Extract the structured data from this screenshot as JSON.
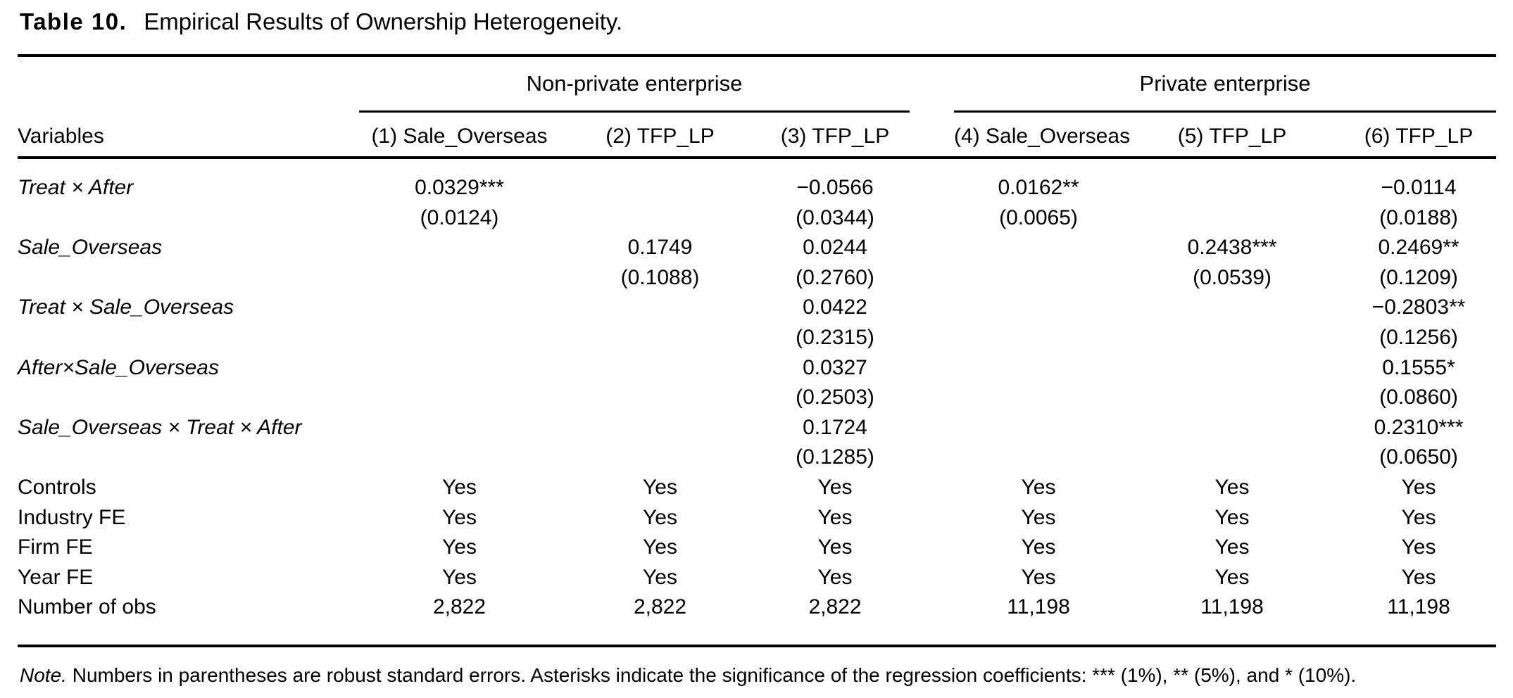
{
  "title": {
    "label": "Table 10.",
    "text": "Empirical Results of Ownership Heterogeneity."
  },
  "table": {
    "groups": [
      {
        "label": "Non-private enterprise"
      },
      {
        "label": "Private enterprise"
      }
    ],
    "columns": [
      "Variables",
      "(1) Sale_Overseas",
      "(2) TFP_LP",
      "(3) TFP_LP",
      "(4) Sale_Overseas",
      "(5) TFP_LP",
      "(6) TFP_LP"
    ],
    "coef_rows": [
      {
        "label": "Treat × After",
        "cells": [
          {
            "est": "0.0329***",
            "se": "(0.0124)"
          },
          null,
          {
            "est": "−0.0566",
            "se": "(0.0344)"
          },
          {
            "est": "0.0162**",
            "se": "(0.0065)"
          },
          null,
          {
            "est": "−0.0114",
            "se": "(0.0188)"
          }
        ]
      },
      {
        "label": "Sale_Overseas",
        "cells": [
          null,
          {
            "est": "0.1749",
            "se": "(0.1088)"
          },
          {
            "est": "0.0244",
            "se": "(0.2760)"
          },
          null,
          {
            "est": "0.2438***",
            "se": "(0.0539)"
          },
          {
            "est": "0.2469**",
            "se": "(0.1209)"
          }
        ]
      },
      {
        "label": "Treat × Sale_Overseas",
        "cells": [
          null,
          null,
          {
            "est": "0.0422",
            "se": "(0.2315)"
          },
          null,
          null,
          {
            "est": "−0.2803**",
            "se": "(0.1256)"
          }
        ]
      },
      {
        "label": "After×Sale_Overseas",
        "cells": [
          null,
          null,
          {
            "est": "0.0327",
            "se": "(0.2503)"
          },
          null,
          null,
          {
            "est": "0.1555*",
            "se": "(0.0860)"
          }
        ]
      },
      {
        "label": "Sale_Overseas × Treat × After",
        "cells": [
          null,
          null,
          {
            "est": "0.1724",
            "se": "(0.1285)"
          },
          null,
          null,
          {
            "est": "0.2310***",
            "se": "(0.0650)"
          }
        ]
      }
    ],
    "info_rows": [
      {
        "label": "Controls",
        "values": [
          "Yes",
          "Yes",
          "Yes",
          "Yes",
          "Yes",
          "Yes"
        ]
      },
      {
        "label": "Industry FE",
        "values": [
          "Yes",
          "Yes",
          "Yes",
          "Yes",
          "Yes",
          "Yes"
        ]
      },
      {
        "label": "Firm FE",
        "values": [
          "Yes",
          "Yes",
          "Yes",
          "Yes",
          "Yes",
          "Yes"
        ]
      },
      {
        "label": "Year FE",
        "values": [
          "Yes",
          "Yes",
          "Yes",
          "Yes",
          "Yes",
          "Yes"
        ]
      },
      {
        "label": "Number of obs",
        "values": [
          "2,822",
          "2,822",
          "2,822",
          "11,198",
          "11,198",
          "11,198"
        ]
      }
    ]
  },
  "footnote": {
    "label": "Note.",
    "text": " Numbers in parentheses are robust standard errors. Asterisks indicate the significance of the regression coefficients: *** (1%), ** (5%), and * (10%)."
  }
}
